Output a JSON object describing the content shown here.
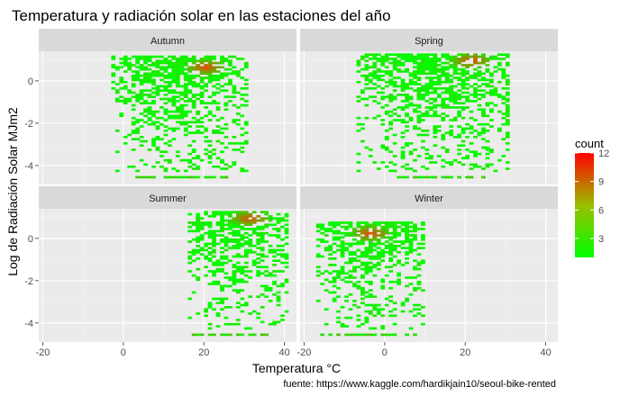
{
  "chart_data": {
    "type": "heatmap",
    "title": "Temperatura y radiación solar en las estaciones del año",
    "xlabel": "Temperatura °C",
    "ylabel": "Log de Radiación Solar MJm2",
    "caption": "fuente: https://www.kaggle.com/hardikjain10/seoul-bike-rented",
    "xlim": [
      -21,
      43
    ],
    "ylim": [
      -4.9,
      1.4
    ],
    "x_ticks": [
      -20,
      0,
      20,
      40
    ],
    "y_ticks": [
      -4,
      -2,
      0
    ],
    "grid": true,
    "legend": {
      "title": "count",
      "position": "right",
      "ticks": [
        3,
        6,
        9,
        12
      ],
      "min": 1,
      "max": 12,
      "colors": [
        "#00ff00",
        "#ff0000"
      ]
    },
    "panels": [
      {
        "name": "Autumn",
        "xrange": [
          -3,
          30
        ],
        "yrange": [
          -4.3,
          1.2
        ],
        "hotspot": [
          20,
          0.6
        ],
        "baseline_x": [
          2,
          25
        ]
      },
      {
        "name": "Spring",
        "xrange": [
          -7,
          30
        ],
        "yrange": [
          -4.3,
          1.3
        ],
        "hotspot": [
          21,
          0.9
        ],
        "baseline_x": [
          2,
          25
        ]
      },
      {
        "name": "Summer",
        "xrange": [
          16,
          40
        ],
        "yrange": [
          -4.3,
          1.3
        ],
        "hotspot": [
          31,
          0.9
        ],
        "baseline_x": [
          16,
          35
        ]
      },
      {
        "name": "Winter",
        "xrange": [
          -17,
          9
        ],
        "yrange": [
          -4.3,
          0.8
        ],
        "hotspot": [
          -4,
          0.2
        ],
        "baseline_x": [
          -17,
          7
        ]
      }
    ]
  }
}
